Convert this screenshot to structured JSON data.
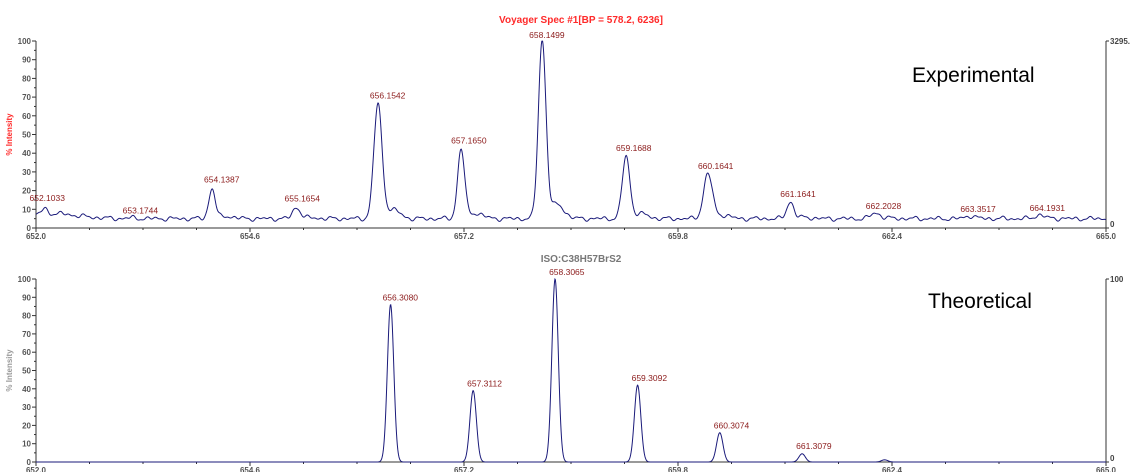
{
  "chart_data": [
    {
      "type": "line",
      "title": "Voyager Spec #1[BP = 578.2, 6236]",
      "annotation": "Experimental",
      "ylabel": "% Intensity",
      "xlim": [
        652.0,
        665.0
      ],
      "ylim": [
        0,
        100
      ],
      "x_ticks": [
        "652.0",
        "654.6",
        "657.2",
        "659.8",
        "662.4",
        "665.0"
      ],
      "y_ticks": [
        "0",
        "10",
        "20",
        "30",
        "40",
        "50",
        "60",
        "70",
        "80",
        "90",
        "100"
      ],
      "right_axis_ticks": [
        "3295.",
        "0"
      ],
      "colors": {
        "title": "#ff2a2a",
        "line": "#1a1a7a",
        "labels": "#8b1a1a",
        "ylabel": "#ff2a2a"
      },
      "peaks": [
        {
          "x": 652.1033,
          "y": 8,
          "label": "652.1033",
          "w": 0.05
        },
        {
          "x": 653.1744,
          "y": 5.5,
          "label": "653.1744",
          "w": 0.06
        },
        {
          "x": 654.1387,
          "y": 21,
          "label": "654.1387",
          "w": 0.055
        },
        {
          "x": 655.1654,
          "y": 11,
          "label": "655.1654",
          "w": 0.065
        },
        {
          "x": 656.1542,
          "y": 66,
          "label": "656.1542",
          "w": 0.07
        },
        {
          "x": 657.165,
          "y": 42,
          "label": "657.1650",
          "w": 0.06
        },
        {
          "x": 658.1499,
          "y": 100,
          "label": "658.1499",
          "w": 0.065
        },
        {
          "x": 659.1688,
          "y": 38,
          "label": "659.1688",
          "w": 0.065
        },
        {
          "x": 660.1641,
          "y": 29,
          "label": "660.1641",
          "w": 0.075
        },
        {
          "x": 661.1641,
          "y": 14,
          "label": "661.1641",
          "w": 0.06
        },
        {
          "x": 662.2028,
          "y": 8,
          "label": "662.2028",
          "w": 0.08
        },
        {
          "x": 663.3517,
          "y": 6.5,
          "label": "663.3517",
          "w": 0.08
        },
        {
          "x": 664.1931,
          "y": 7,
          "label": "664.1931",
          "w": 0.08
        }
      ],
      "baseline": 5
    },
    {
      "type": "line",
      "title": "ISO:C38H57BrS2",
      "annotation": "Theoretical",
      "ylabel": "% Intensity",
      "xlim": [
        652.0,
        665.0
      ],
      "ylim": [
        0,
        100
      ],
      "x_ticks": [
        "652.0",
        "654.6",
        "657.2",
        "659.8",
        "662.4",
        "665.0"
      ],
      "y_ticks": [
        "0",
        "10",
        "20",
        "30",
        "40",
        "50",
        "60",
        "70",
        "80",
        "90",
        "100"
      ],
      "right_axis_ticks": [
        "100",
        "0"
      ],
      "colors": {
        "title": "#777777",
        "line": "#1a1a7a",
        "labels": "#8b1a1a",
        "ylabel": "#9a9a9a"
      },
      "peaks": [
        {
          "x": 656.308,
          "y": 86,
          "label": "656.3080",
          "w": 0.055
        },
        {
          "x": 657.3112,
          "y": 39,
          "label": "657.3112",
          "w": 0.055
        },
        {
          "x": 658.3065,
          "y": 100,
          "label": "658.3065",
          "w": 0.055
        },
        {
          "x": 659.3092,
          "y": 42,
          "label": "659.3092",
          "w": 0.055
        },
        {
          "x": 660.3074,
          "y": 16,
          "label": "660.3074",
          "w": 0.055
        },
        {
          "x": 661.3079,
          "y": 4.5,
          "label": "661.3079",
          "w": 0.055
        },
        {
          "x": 662.31,
          "y": 1.2,
          "label": "",
          "w": 0.055
        }
      ],
      "baseline": 0
    }
  ]
}
